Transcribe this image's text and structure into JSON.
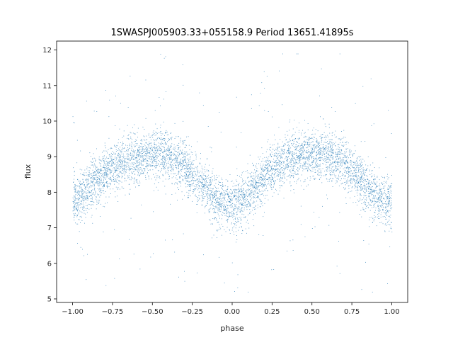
{
  "chart_data": {
    "type": "scatter",
    "title": "1SWASPJ005903.33+055158.9 Period 13651.41895s",
    "xlabel": "phase",
    "ylabel": "flux",
    "xlim": [
      -1.1,
      1.1
    ],
    "ylim": [
      4.9,
      12.25
    ],
    "xticks": [
      "−1.00",
      "−0.75",
      "−0.50",
      "−0.25",
      "0.00",
      "0.25",
      "0.50",
      "0.75",
      "1.00"
    ],
    "xtick_values": [
      -1.0,
      -0.75,
      -0.5,
      -0.25,
      0.0,
      0.25,
      0.5,
      0.75,
      1.0
    ],
    "yticks": [
      "5",
      "6",
      "7",
      "8",
      "9",
      "10",
      "11",
      "12"
    ],
    "ytick_values": [
      5,
      6,
      7,
      8,
      9,
      10,
      11,
      12
    ],
    "grid": false,
    "legend": "none",
    "point_color": "#1f77b4",
    "series": [
      {
        "x": [
          -1.0,
          -0.95,
          -0.9,
          -0.85,
          -0.8,
          -0.75,
          -0.7,
          -0.65,
          -0.6,
          -0.55,
          -0.5,
          -0.45,
          -0.4,
          -0.35,
          -0.3,
          -0.25,
          -0.2,
          -0.15,
          -0.1,
          -0.05,
          0.0,
          0.05,
          0.1,
          0.15,
          0.2,
          0.25,
          0.3,
          0.35,
          0.4,
          0.45,
          0.5,
          0.55,
          0.6,
          0.65,
          0.7,
          0.75,
          0.8,
          0.85,
          0.9,
          0.95,
          1.0
        ],
        "y": [
          7.75,
          7.9,
          8.1,
          8.35,
          8.55,
          8.7,
          8.85,
          8.95,
          9.0,
          9.05,
          9.05,
          9.05,
          9.0,
          8.9,
          8.75,
          8.5,
          8.25,
          8.0,
          7.8,
          7.7,
          7.65,
          7.75,
          7.95,
          8.2,
          8.45,
          8.65,
          8.8,
          8.95,
          9.0,
          9.05,
          9.05,
          9.05,
          9.0,
          8.95,
          8.8,
          8.6,
          8.35,
          8.1,
          7.9,
          7.8,
          7.75
        ],
        "scatter_sd": 0.35
      }
    ]
  }
}
